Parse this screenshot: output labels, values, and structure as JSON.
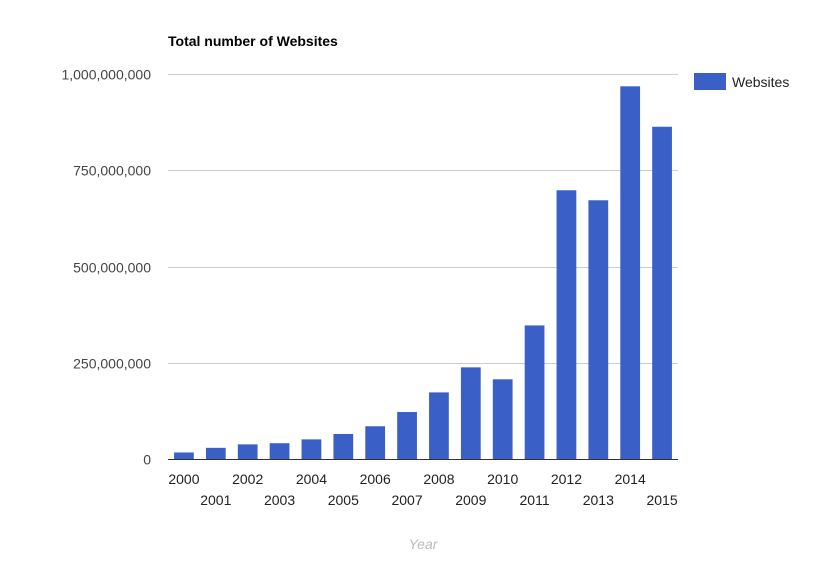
{
  "chart_data": {
    "type": "bar",
    "title": "Total number of Websites",
    "xlabel": "Year",
    "ylabel": "",
    "ylim": [
      0,
      1000000000
    ],
    "yticks": [
      0,
      250000000,
      500000000,
      750000000,
      1000000000
    ],
    "ytick_labels": [
      "0",
      "250,000,000",
      "500,000,000",
      "750,000,000",
      "1,000,000,000"
    ],
    "categories": [
      "2000",
      "2001",
      "2002",
      "2003",
      "2004",
      "2005",
      "2006",
      "2007",
      "2008",
      "2009",
      "2010",
      "2011",
      "2012",
      "2013",
      "2014",
      "2015"
    ],
    "series": [
      {
        "name": "Websites",
        "color": "#3a5fc7",
        "values": [
          17000000,
          29000000,
          38000000,
          41000000,
          51000000,
          65000000,
          85000000,
          122000000,
          173000000,
          238000000,
          207000000,
          347000000,
          698000000,
          672000000,
          968000000,
          863000000
        ]
      }
    ],
    "grid": true,
    "legend_position": "right"
  }
}
